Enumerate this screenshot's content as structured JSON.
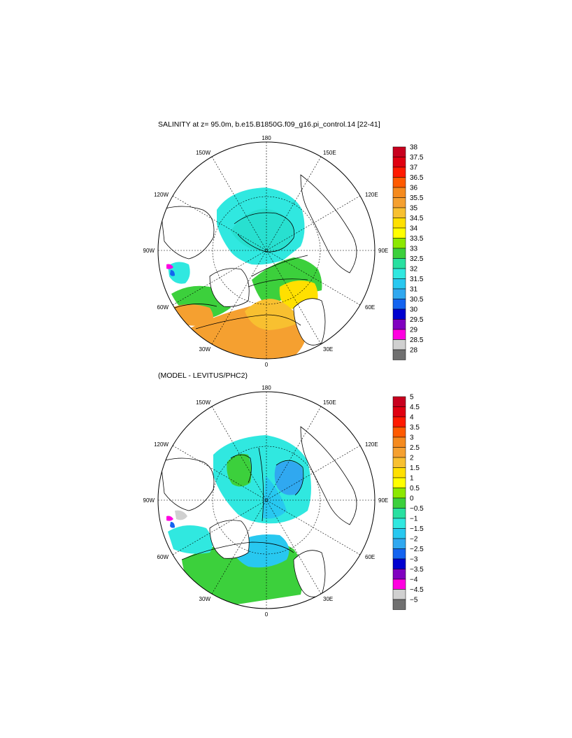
{
  "panels": [
    {
      "id": "p1",
      "title": "SALINITY at z=  95.0m, b.e15.B1850G.f09_g16.pi_control.14 [22-41]",
      "lon_labels": [
        "180",
        "150E",
        "120E",
        "90E",
        "60E",
        "30E",
        "0",
        "30W",
        "60W",
        "90W",
        "120W",
        "150W"
      ],
      "colorbar": {
        "labels": [
          "38",
          "37.5",
          "37",
          "36.5",
          "36",
          "35.5",
          "35",
          "34.5",
          "34",
          "33.5",
          "33",
          "32.5",
          "32",
          "31.5",
          "31",
          "30.5",
          "30",
          "29.5",
          "29",
          "28.5",
          "28"
        ],
        "colors": [
          "#c8001e",
          "#e00010",
          "#ff1a00",
          "#ff5a00",
          "#f58a1e",
          "#f5a030",
          "#f8c030",
          "#ffe000",
          "#ffff00",
          "#8ce800",
          "#3cd03c",
          "#28e0a0",
          "#30e8e0",
          "#28c8f0",
          "#30a8f0",
          "#1464f0",
          "#0000d0",
          "#8000c0",
          "#ff00e0",
          "#d0d0d0",
          "#707070"
        ]
      }
    },
    {
      "id": "p2",
      "title": "(MODEL - LEVITUS/PHC2)",
      "lon_labels": [
        "180",
        "150E",
        "120E",
        "90E",
        "60E",
        "30E",
        "0",
        "30W",
        "60W",
        "90W",
        "120W",
        "150W"
      ],
      "colorbar": {
        "labels": [
          "5",
          "4.5",
          "4",
          "3.5",
          "3",
          "2.5",
          "2",
          "1.5",
          "1",
          "0.5",
          "0",
          "−0.5",
          "−1",
          "−1.5",
          "−2",
          "−2.5",
          "−3",
          "−3.5",
          "−4",
          "−4.5",
          "−5"
        ],
        "colors": [
          "#c8001e",
          "#e00010",
          "#ff1a00",
          "#ff5a00",
          "#f58a1e",
          "#f5a030",
          "#f8c030",
          "#ffe000",
          "#ffff00",
          "#8ce800",
          "#3cd03c",
          "#28e0a0",
          "#30e8e0",
          "#28c8f0",
          "#30a8f0",
          "#1464f0",
          "#0000d0",
          "#8000c0",
          "#ff00e0",
          "#d0d0d0",
          "#707070"
        ]
      }
    }
  ]
}
